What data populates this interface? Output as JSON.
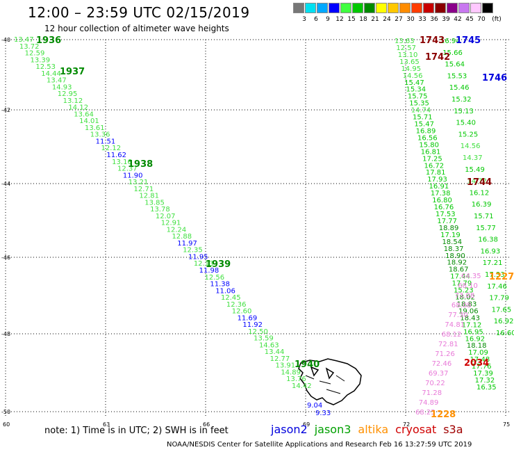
{
  "header": {
    "title": "12:00 – 23:59 UTC 02/15/2019",
    "subtitle": "12 hour collection of altimeter wave heights"
  },
  "legend": {
    "unit": "(ft)",
    "bins": [
      {
        "label": "3",
        "color": "#777777"
      },
      {
        "label": "6",
        "color": "#00e0f0"
      },
      {
        "label": "9",
        "color": "#00a8ff"
      },
      {
        "label": "12",
        "color": "#0000ff"
      },
      {
        "label": "15",
        "color": "#40ff40"
      },
      {
        "label": "18",
        "color": "#00c800"
      },
      {
        "label": "21",
        "color": "#008a00"
      },
      {
        "label": "24",
        "color": "#ffff00"
      },
      {
        "label": "27",
        "color": "#ffc800"
      },
      {
        "label": "30",
        "color": "#ff8c00"
      },
      {
        "label": "33",
        "color": "#ff3c00"
      },
      {
        "label": "36",
        "color": "#c80000"
      },
      {
        "label": "39",
        "color": "#8a0000"
      },
      {
        "label": "42",
        "color": "#8a008a"
      },
      {
        "label": "45",
        "color": "#c878f0"
      },
      {
        "label": "70",
        "color": "#ffc8ff"
      },
      {
        "label": "",
        "color": "#000000"
      }
    ]
  },
  "axes": {
    "lat_labels": [
      "-40",
      "-42",
      "-44",
      "-46",
      "-48",
      "-50"
    ],
    "lon_labels": [
      "60",
      "63",
      "66",
      "69",
      "72",
      "75"
    ]
  },
  "track1": {
    "pass_times": [
      "1936",
      "1937",
      "1938",
      "1939",
      "1940"
    ],
    "values": [
      "13.47",
      "13.72",
      "12.59",
      "13.39",
      "12.53",
      "14.44",
      "13.47",
      "14.93",
      "12.95",
      "13.12",
      "14.12",
      "13.64",
      "14.01",
      "13.61",
      "13.36",
      "11.51",
      "12.12",
      "11.62",
      "13.16",
      "12.37",
      "11.90",
      "13.21",
      "12.71",
      "12.81",
      "13.85",
      "13.78",
      "12.07",
      "12.91",
      "12.24",
      "12.88",
      "11.97",
      "12.35",
      "11.95",
      "12.13",
      "11.98",
      "12.56",
      "11.38",
      "11.06",
      "12.45",
      "12.36",
      "12.60",
      "11.69",
      "11.92",
      "12.50",
      "13.59",
      "14.63",
      "13.44",
      "12.77",
      "13.91",
      "14.89",
      "13.76",
      "14.42",
      "9.04",
      "9.33"
    ]
  },
  "track2": {
    "pass_times": [
      "1743",
      "1742",
      "1745",
      "1746",
      "1744",
      "1227",
      "1228",
      "2034"
    ],
    "values": [
      "13.63",
      "12.57",
      "13.10",
      "13.65",
      "14.95",
      "14.56",
      "15.47",
      "15.34",
      "15.75",
      "15.35",
      "14.74",
      "15.71",
      "15.47",
      "16.89",
      "16.56",
      "15.80",
      "16.81",
      "17.25",
      "16.72",
      "17.81",
      "17.93",
      "16.91",
      "17.38",
      "16.80",
      "16.76",
      "17.53",
      "17.77",
      "18.89",
      "17.19",
      "18.54",
      "18.37",
      "18.90",
      "18.92",
      "18.67",
      "17.44",
      "17.79",
      "15.23",
      "18.02",
      "18.83",
      "19.06",
      "18.43",
      "17.12",
      "16.95",
      "16.92",
      "18.18",
      "17.09",
      "17.48",
      "17.76",
      "17.39",
      "17.32",
      "16.35",
      "16.94",
      "15.66",
      "15.64",
      "15.53",
      "15.46",
      "15.32",
      "15.13",
      "15.40",
      "15.25",
      "14.56",
      "14.37",
      "15.49",
      "14.72",
      "16.12",
      "16.39",
      "15.71",
      "15.77",
      "16.38",
      "16.93",
      "17.21",
      "17.33",
      "17.46",
      "17.79",
      "17.65",
      "16.92",
      "16.60"
    ],
    "pink_values": [
      "64.35",
      "68.10",
      "73.08",
      "68.08",
      "77.30",
      "74.81",
      "68.12",
      "72.81",
      "71.26",
      "72.46",
      "69.37",
      "70.22",
      "71.28",
      "74.89",
      "68.25"
    ]
  },
  "footer": {
    "note": "note: 1) Time is in UTC; 2) SWH is in feet",
    "satellites": [
      {
        "name": "jason2",
        "color": "#0000dd"
      },
      {
        "name": "jason3",
        "color": "#00a000"
      },
      {
        "name": "altika",
        "color": "#ff9000"
      },
      {
        "name": "cryosat",
        "color": "#d00000"
      },
      {
        "name": "s3a",
        "color": "#a00000"
      }
    ],
    "credit": "NOAA/NESDIS Center for Satellite Applications and Research    Feb 16 13:27:59 UTC 2019"
  }
}
